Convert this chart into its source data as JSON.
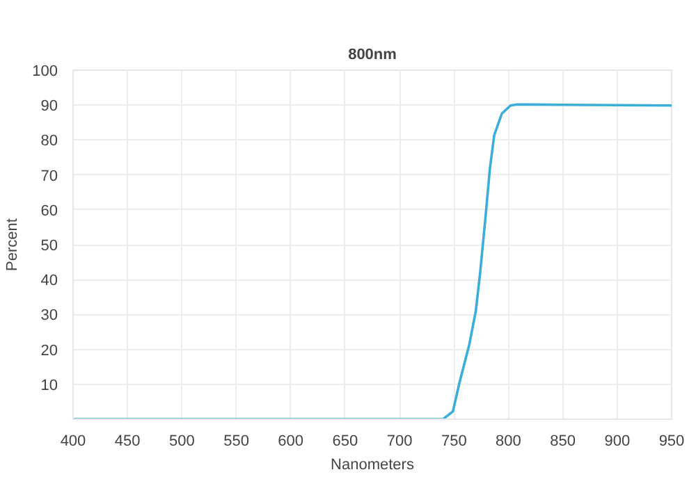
{
  "chart_data": {
    "type": "line",
    "title": "800nm",
    "xlabel": "Nanometers",
    "ylabel": "Percent",
    "xlim": [
      400,
      950
    ],
    "ylim": [
      0,
      100
    ],
    "xticks": [
      400,
      450,
      500,
      550,
      600,
      650,
      700,
      750,
      800,
      850,
      900,
      950
    ],
    "yticks": [
      10,
      20,
      30,
      40,
      50,
      60,
      70,
      80,
      90,
      100
    ],
    "grid": true,
    "marker": "none",
    "line_style": "solid",
    "series": [
      {
        "color": "#3aaed8",
        "x": [
          400,
          500,
          600,
          700,
          740,
          749,
          755,
          764,
          770,
          774,
          779,
          783,
          787,
          794,
          802,
          808,
          850,
          900,
          950
        ],
        "values": [
          0,
          0,
          0,
          0,
          0,
          2.2,
          10.4,
          21.3,
          30.9,
          41.8,
          58,
          71.8,
          81.4,
          87.6,
          89.9,
          90.2,
          90.1,
          90,
          89.9
        ]
      }
    ]
  }
}
